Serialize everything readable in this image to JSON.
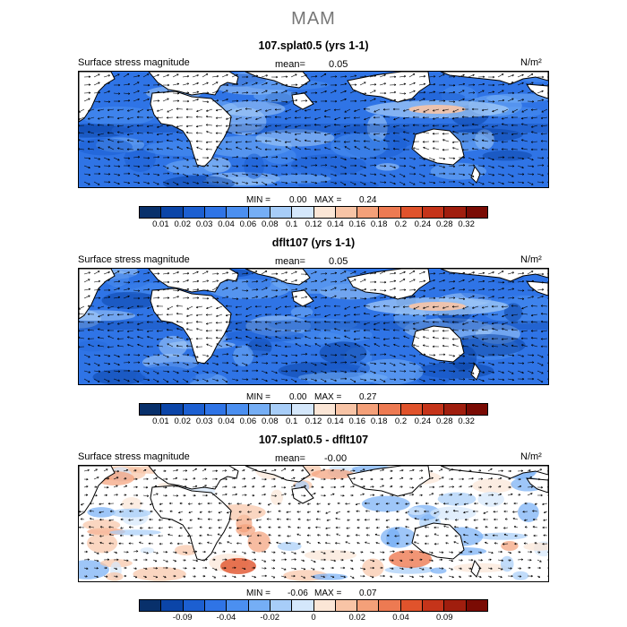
{
  "title": "MAM",
  "colorbar_colors": {
    "abs": [
      "#08306b",
      "#0b45a8",
      "#1c5fd1",
      "#2f74e6",
      "#4b8ff0",
      "#75aef5",
      "#a7cdf8",
      "#d4e7fb",
      "#fbe6d6",
      "#f8c4a6",
      "#f4a079",
      "#ed7a52",
      "#e0532c",
      "#c5341a",
      "#a01e0e",
      "#7a0b04"
    ],
    "diff": [
      "#08306b",
      "#0b45a8",
      "#1c5fd1",
      "#2f74e6",
      "#4b8ff0",
      "#75aef5",
      "#a7cdf8",
      "#d4e7fb",
      "#fbe6d6",
      "#f8c4a6",
      "#f4a079",
      "#ed7a52",
      "#e0532c",
      "#c5341a",
      "#a01e0e",
      "#7a0b04"
    ]
  },
  "panels": [
    {
      "title": "107.splat0.5 (yrs 1-1)",
      "variable": "Surface stress magnitude",
      "mean_label": "mean=",
      "mean_value": "0.05",
      "units": "N/m²",
      "min_label": "MIN =",
      "min_value": "0.00",
      "max_label": "MAX =",
      "max_value": "0.24",
      "colorbar_ticks": [
        "0.01",
        "0.02",
        "0.03",
        "0.04",
        "0.06",
        "0.08",
        "0.1",
        "0.12",
        "0.14",
        "0.16",
        "0.18",
        "0.2",
        "0.24",
        "0.28",
        "0.32"
      ]
    },
    {
      "title": "dflt107 (yrs 1-1)",
      "variable": "Surface stress magnitude",
      "mean_label": "mean=",
      "mean_value": "0.05",
      "units": "N/m²",
      "min_label": "MIN =",
      "min_value": "0.00",
      "max_label": "MAX =",
      "max_value": "0.27",
      "colorbar_ticks": [
        "0.01",
        "0.02",
        "0.03",
        "0.04",
        "0.06",
        "0.08",
        "0.1",
        "0.12",
        "0.14",
        "0.16",
        "0.18",
        "0.2",
        "0.24",
        "0.28",
        "0.32"
      ]
    },
    {
      "title": "107.splat0.5 - dflt107",
      "variable": "Surface stress magnitude",
      "mean_label": "mean=",
      "mean_value": "-0.00",
      "units": "N/m²",
      "min_label": "MIN =",
      "min_value": "-0.06",
      "max_label": "MAX =",
      "max_value": "0.07",
      "colorbar_ticks": [
        "-0.09",
        "-0.04",
        "-0.02",
        "0",
        "0.02",
        "0.04",
        "0.09"
      ]
    }
  ]
}
